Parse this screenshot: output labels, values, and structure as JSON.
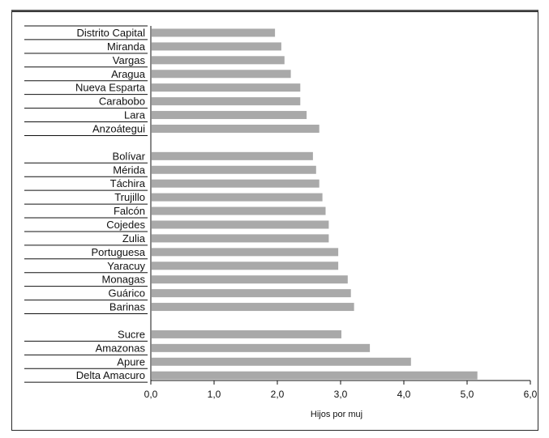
{
  "chart_data": {
    "type": "bar",
    "orientation": "horizontal",
    "xlabel": "Hijos por muj",
    "xlim": [
      0,
      6
    ],
    "xticks": [
      "0,0",
      "1,0",
      "2,0",
      "3,0",
      "4,0",
      "5,0",
      "6,0"
    ],
    "grid": false,
    "legend": "none",
    "bar_color": "#9a9a9a",
    "groups": [
      {
        "categories": [
          "Distrito Capital",
          "Miranda",
          "Vargas",
          "Aragua",
          "Nueva Esparta",
          "Carabobo",
          "Lara",
          "Anzoátegui"
        ],
        "values": [
          1.95,
          2.05,
          2.1,
          2.2,
          2.35,
          2.35,
          2.45,
          2.65
        ]
      },
      {
        "categories": [
          "Bolívar",
          "Mérida",
          "Táchira",
          "Trujillo",
          "Falcón",
          "Cojedes",
          "Zulia",
          "Portuguesa",
          "Yaracuy",
          "Monagas",
          "Guárico",
          "Barinas"
        ],
        "values": [
          2.55,
          2.6,
          2.65,
          2.7,
          2.75,
          2.8,
          2.8,
          2.95,
          2.95,
          3.1,
          3.15,
          3.2
        ]
      },
      {
        "categories": [
          "Sucre",
          "Amazonas",
          "Apure",
          "Delta Amacuro"
        ],
        "values": [
          3.0,
          3.45,
          4.1,
          5.15
        ]
      }
    ]
  }
}
